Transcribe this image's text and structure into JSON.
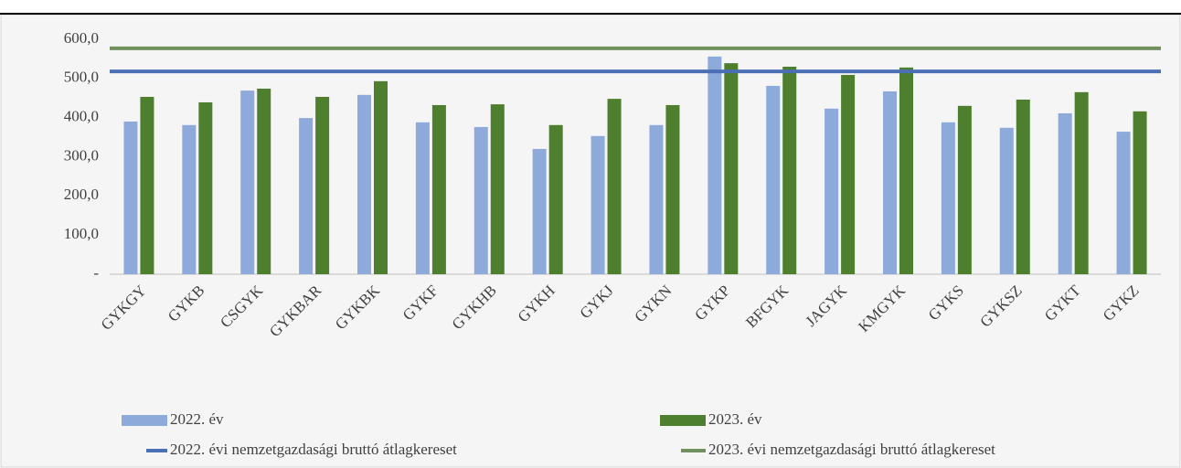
{
  "chart_data": {
    "type": "bar",
    "categories": [
      "GYKGY",
      "GYKB",
      "CSGYK",
      "GYKBAR",
      "GYKBK",
      "GYKF",
      "GYKHB",
      "GYKH",
      "GYKJ",
      "GYKN",
      "GYKP",
      "BFGYK",
      "JAGYK",
      "KMGYK",
      "GYKS",
      "GYKSZ",
      "GYKT",
      "GYKZ"
    ],
    "series": [
      {
        "name": "2022. év",
        "color": "#8eaadb",
        "values": [
          390,
          381,
          469,
          399,
          458,
          388,
          376,
          320,
          353,
          381,
          556,
          481,
          423,
          467,
          388,
          374,
          411,
          364
        ]
      },
      {
        "name": "2023. év",
        "color": "#4e7f2e",
        "values": [
          453,
          439,
          474,
          453,
          493,
          432,
          434,
          381,
          448,
          432,
          539,
          530,
          509,
          528,
          430,
          446,
          465,
          416
        ]
      },
      {
        "name": "2022. évi nemzetgazdasági bruttó átlagkereset",
        "color": "#4a6fb5",
        "type": "line",
        "value": 518
      },
      {
        "name": "2023. évi nemzetgazdasági bruttó átlagkereset",
        "color": "#70905e",
        "type": "line",
        "value": 577
      }
    ],
    "ylim": [
      0,
      600
    ],
    "yticks": [
      {
        "value": 0,
        "label": "-"
      },
      {
        "value": 100,
        "label": "100,0"
      },
      {
        "value": 200,
        "label": "200,0"
      },
      {
        "value": 300,
        "label": "300,0"
      },
      {
        "value": 400,
        "label": "400,0"
      },
      {
        "value": 500,
        "label": "500,0"
      },
      {
        "value": 600,
        "label": "600,0"
      }
    ],
    "grid": false
  }
}
